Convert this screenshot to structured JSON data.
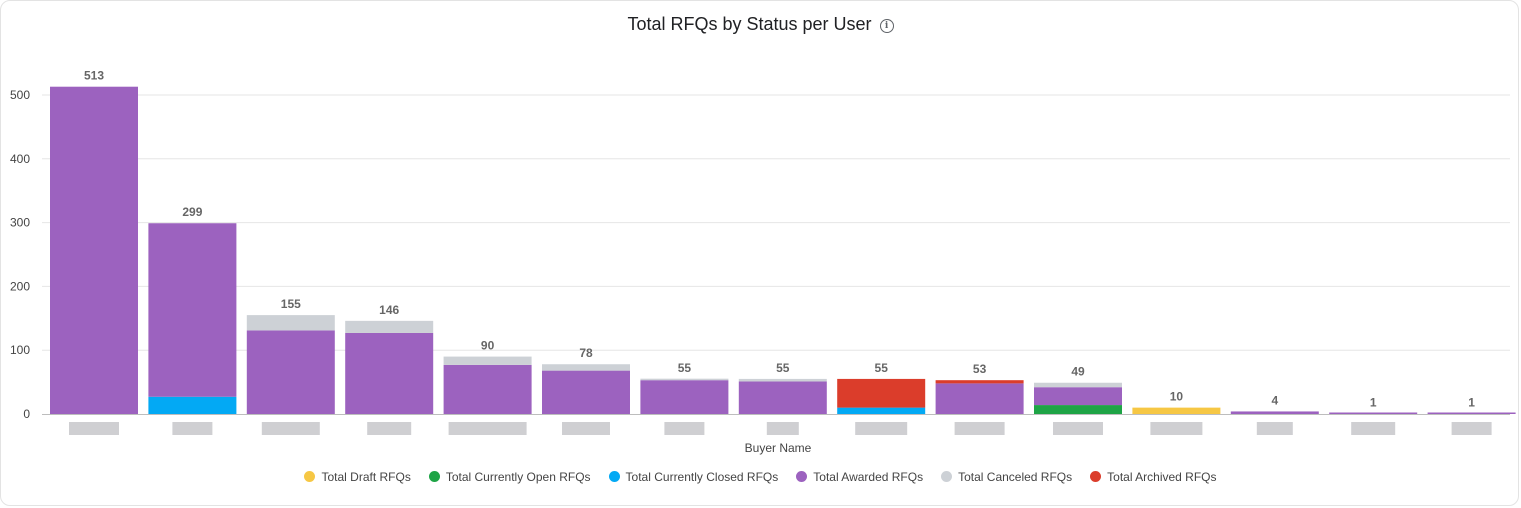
{
  "header": {
    "title": "Total RFQs by Status per User",
    "info_icon": "info-icon"
  },
  "chart_data": {
    "type": "bar",
    "stacked": true,
    "title": "Total RFQs by Status per User",
    "xlabel": "Buyer Name",
    "ylabel": "",
    "ylim": [
      0,
      540
    ],
    "yticks": [
      0,
      100,
      200,
      300,
      400,
      500
    ],
    "grid": true,
    "legend_position": "bottom",
    "categories": [
      "",
      "",
      "",
      "",
      "",
      "",
      "",
      "",
      "",
      "",
      "",
      "",
      "",
      "",
      ""
    ],
    "totals": [
      513,
      299,
      155,
      146,
      90,
      78,
      55,
      55,
      55,
      53,
      49,
      10,
      4,
      1,
      1
    ],
    "series": [
      {
        "name": "Total Draft RFQs",
        "color": "#f6c744",
        "values": [
          0,
          0,
          0,
          0,
          0,
          0,
          0,
          0,
          0,
          0,
          0,
          10,
          0,
          0,
          0
        ]
      },
      {
        "name": "Total Currently Open RFQs",
        "color": "#1ea446",
        "values": [
          0,
          0,
          0,
          0,
          0,
          0,
          0,
          0,
          0,
          0,
          14,
          0,
          0,
          0,
          0
        ]
      },
      {
        "name": "Total Currently Closed RFQs",
        "color": "#03a9f4",
        "values": [
          0,
          27,
          0,
          0,
          0,
          0,
          0,
          0,
          10,
          0,
          0,
          0,
          0,
          0,
          0
        ]
      },
      {
        "name": "Total Awarded RFQs",
        "color": "#9c62bf",
        "values": [
          513,
          272,
          131,
          127,
          77,
          68,
          53,
          51,
          0,
          48,
          28,
          0,
          4,
          1,
          1
        ]
      },
      {
        "name": "Total Canceled RFQs",
        "color": "#cdd1d6",
        "values": [
          0,
          0,
          24,
          19,
          13,
          10,
          2,
          4,
          0,
          0,
          7,
          0,
          0,
          0,
          0
        ]
      },
      {
        "name": "Total Archived RFQs",
        "color": "#db3d2b",
        "values": [
          0,
          0,
          0,
          0,
          0,
          0,
          0,
          0,
          45,
          5,
          0,
          0,
          0,
          0,
          0
        ]
      }
    ]
  }
}
